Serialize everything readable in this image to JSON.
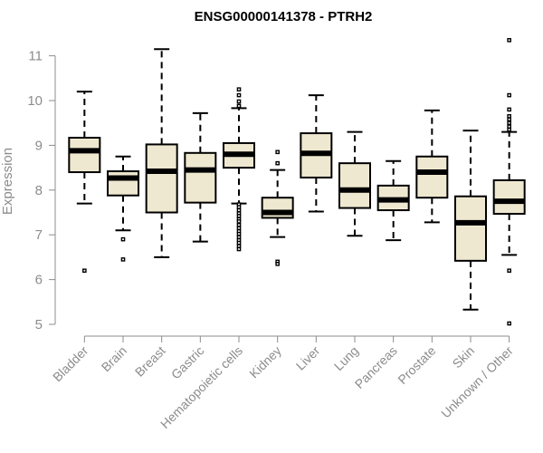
{
  "chart_data": {
    "type": "box",
    "title": "ENSG00000141378 - PTRH2",
    "xlabel": "",
    "ylabel": "Expression",
    "ylim": [
      5,
      11.5
    ],
    "yticks": [
      5,
      6,
      7,
      8,
      9,
      10,
      11
    ],
    "categories": [
      "Bladder",
      "Brain",
      "Breast",
      "Gastric",
      "Hematopoietic cells",
      "Kidney",
      "Liver",
      "Lung",
      "Pancreas",
      "Prostate",
      "Skin",
      "Unknown / Other"
    ],
    "boxes": [
      {
        "name": "Bladder",
        "min": 7.7,
        "q1": 8.4,
        "median": 8.88,
        "q3": 9.17,
        "max": 10.2,
        "outliers": [
          6.2
        ]
      },
      {
        "name": "Brain",
        "min": 7.1,
        "q1": 7.88,
        "median": 8.27,
        "q3": 8.42,
        "max": 8.75,
        "outliers": [
          6.9,
          6.45
        ]
      },
      {
        "name": "Breast",
        "min": 6.5,
        "q1": 7.5,
        "median": 8.42,
        "q3": 9.02,
        "max": 11.15,
        "outliers": []
      },
      {
        "name": "Gastric",
        "min": 6.85,
        "q1": 7.72,
        "median": 8.45,
        "q3": 8.83,
        "max": 9.72,
        "outliers": []
      },
      {
        "name": "Hematopoietic cells",
        "min": 7.7,
        "q1": 8.5,
        "median": 8.8,
        "q3": 9.05,
        "max": 9.83,
        "outliers": [
          10.25,
          10.12,
          9.98,
          9.88,
          7.68,
          7.62,
          7.55,
          7.48,
          7.42,
          7.35,
          7.3,
          7.22,
          7.15,
          7.08,
          7.02,
          6.95,
          6.88,
          6.82,
          6.75,
          6.68
        ]
      },
      {
        "name": "Kidney",
        "min": 6.95,
        "q1": 7.38,
        "median": 7.5,
        "q3": 7.83,
        "max": 8.45,
        "outliers": [
          8.85,
          8.6,
          6.4,
          6.35
        ]
      },
      {
        "name": "Liver",
        "min": 7.52,
        "q1": 8.28,
        "median": 8.82,
        "q3": 9.27,
        "max": 10.12,
        "outliers": []
      },
      {
        "name": "Lung",
        "min": 6.98,
        "q1": 7.6,
        "median": 8.0,
        "q3": 8.6,
        "max": 9.3,
        "outliers": []
      },
      {
        "name": "Pancreas",
        "min": 6.88,
        "q1": 7.55,
        "median": 7.78,
        "q3": 8.1,
        "max": 8.65,
        "outliers": []
      },
      {
        "name": "Prostate",
        "min": 7.28,
        "q1": 7.83,
        "median": 8.4,
        "q3": 8.75,
        "max": 9.78,
        "outliers": []
      },
      {
        "name": "Skin",
        "min": 5.33,
        "q1": 6.42,
        "median": 7.27,
        "q3": 7.86,
        "max": 9.33,
        "outliers": []
      },
      {
        "name": "Unknown / Other",
        "min": 6.55,
        "q1": 7.47,
        "median": 7.75,
        "q3": 8.22,
        "max": 9.3,
        "outliers": [
          11.35,
          10.12,
          9.8,
          9.65,
          9.58,
          9.5,
          9.42,
          9.35,
          6.2,
          5.02
        ]
      }
    ],
    "box_fill": "#efe8d0",
    "box_stroke": "#000000",
    "tick_color": "#8c8c8c"
  }
}
